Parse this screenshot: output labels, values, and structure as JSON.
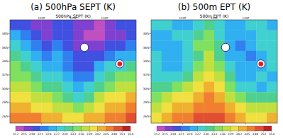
{
  "chart_data": [
    {
      "type": "heatmap",
      "title": "(a) 500hPa SEPT (K)",
      "subtitle": "500hPa SEPT (K)",
      "xlim": [
        115,
        135
      ],
      "xticks": [
        {
          "value": 120,
          "label": "120E"
        },
        {
          "value": 125,
          "label": "125E"
        },
        {
          "value": 130,
          "label": "130E"
        }
      ],
      "ylim": [
        25,
        40
      ],
      "yticks": [
        {
          "value": 26,
          "label": "26N"
        },
        {
          "value": 28,
          "label": "28N"
        },
        {
          "value": 30,
          "label": "30N"
        },
        {
          "value": 32,
          "label": "32N"
        },
        {
          "value": 34,
          "label": "34N"
        },
        {
          "value": 36,
          "label": "36N"
        },
        {
          "value": 38,
          "label": "38N"
        }
      ],
      "cells": [
        [
          320,
          318,
          316,
          315,
          318,
          320,
          317,
          315,
          314,
          316,
          318,
          320
        ],
        [
          324,
          321,
          318,
          317,
          320,
          319,
          316,
          314,
          314,
          315,
          317,
          319
        ],
        [
          328,
          325,
          321,
          319,
          322,
          320,
          317,
          315,
          316,
          318,
          320,
          322
        ],
        [
          331,
          328,
          325,
          322,
          324,
          321,
          318,
          318,
          320,
          322,
          324,
          326
        ],
        [
          333,
          331,
          328,
          325,
          326,
          322,
          320,
          319,
          324,
          327,
          329,
          330
        ],
        [
          335,
          333,
          331,
          329,
          328,
          324,
          321,
          322,
          328,
          331,
          333,
          334
        ],
        [
          338,
          336,
          334,
          332,
          330,
          327,
          324,
          327,
          332,
          335,
          337,
          338
        ],
        [
          341,
          339,
          337,
          336,
          334,
          331,
          329,
          332,
          336,
          339,
          341,
          342
        ],
        [
          344,
          343,
          341,
          340,
          338,
          336,
          335,
          337,
          340,
          342,
          344,
          345
        ],
        [
          347,
          346,
          345,
          344,
          343,
          341,
          340,
          342,
          344,
          346,
          347,
          348
        ]
      ],
      "colorbar": {
        "range": [
          312,
          354
        ],
        "ticks": [
          312,
          315,
          318,
          321,
          324,
          327,
          330,
          333,
          336,
          339,
          342,
          345,
          348,
          351,
          354
        ]
      },
      "colors": [
        "#c050c0",
        "#8040d0",
        "#4050e0",
        "#3080f0",
        "#30b0f0",
        "#40d0d0",
        "#50d090",
        "#80e060",
        "#c0e040",
        "#f0e040",
        "#f0b030",
        "#f08030",
        "#e05030",
        "#c02020"
      ],
      "points": [
        {
          "x": 126.8,
          "y": 36,
          "color": "#ffffff"
        },
        {
          "x": 132.4,
          "y": 33.6,
          "color": "#e02020"
        }
      ]
    },
    {
      "type": "heatmap",
      "title": "(b) 500m EPT (K)",
      "subtitle": "500m EPT (K)",
      "xlim": [
        115,
        135
      ],
      "xticks": [
        {
          "value": 120,
          "label": "120E"
        },
        {
          "value": 125,
          "label": "125E"
        },
        {
          "value": 130,
          "label": "130E"
        }
      ],
      "ylim": [
        25,
        40
      ],
      "yticks": [
        {
          "value": 26,
          "label": "26N"
        },
        {
          "value": 28,
          "label": "28N"
        },
        {
          "value": 30,
          "label": "30N"
        },
        {
          "value": 32,
          "label": "32N"
        },
        {
          "value": 34,
          "label": "34N"
        },
        {
          "value": 36,
          "label": "36N"
        },
        {
          "value": 38,
          "label": "38N"
        }
      ],
      "cells": [
        [
          327,
          328,
          326,
          325,
          329,
          331,
          327,
          325,
          326,
          328,
          327,
          326
        ],
        [
          325,
          326,
          327,
          329,
          332,
          333,
          328,
          326,
          324,
          326,
          328,
          327
        ],
        [
          326,
          324,
          326,
          328,
          333,
          335,
          330,
          325,
          323,
          325,
          327,
          329
        ],
        [
          328,
          325,
          324,
          327,
          332,
          336,
          331,
          326,
          324,
          323,
          326,
          328
        ],
        [
          327,
          326,
          325,
          328,
          334,
          338,
          333,
          327,
          325,
          324,
          325,
          327
        ],
        [
          329,
          327,
          328,
          331,
          337,
          341,
          336,
          330,
          326,
          325,
          327,
          326
        ],
        [
          331,
          330,
          333,
          336,
          340,
          343,
          339,
          333,
          329,
          327,
          326,
          328
        ],
        [
          334,
          336,
          339,
          341,
          343,
          345,
          342,
          338,
          334,
          331,
          330,
          332
        ],
        [
          338,
          340,
          342,
          344,
          346,
          347,
          345,
          342,
          339,
          337,
          336,
          338
        ],
        [
          341,
          343,
          345,
          347,
          348,
          349,
          348,
          346,
          343,
          341,
          340,
          342
        ]
      ],
      "colorbar": {
        "range": [
          312,
          354
        ],
        "ticks": [
          312,
          315,
          318,
          321,
          324,
          327,
          330,
          333,
          336,
          339,
          342,
          345,
          348,
          351,
          354
        ]
      },
      "colors": [
        "#c050c0",
        "#8040d0",
        "#4050e0",
        "#3080f0",
        "#30b0f0",
        "#40d0d0",
        "#50d090",
        "#80e060",
        "#c0e040",
        "#f0e040",
        "#f0b030",
        "#f08030",
        "#e05030",
        "#c02020"
      ],
      "points": [
        {
          "x": 126.8,
          "y": 36,
          "color": "#ffffff"
        },
        {
          "x": 132.4,
          "y": 33.6,
          "color": "#e02020"
        }
      ]
    }
  ]
}
